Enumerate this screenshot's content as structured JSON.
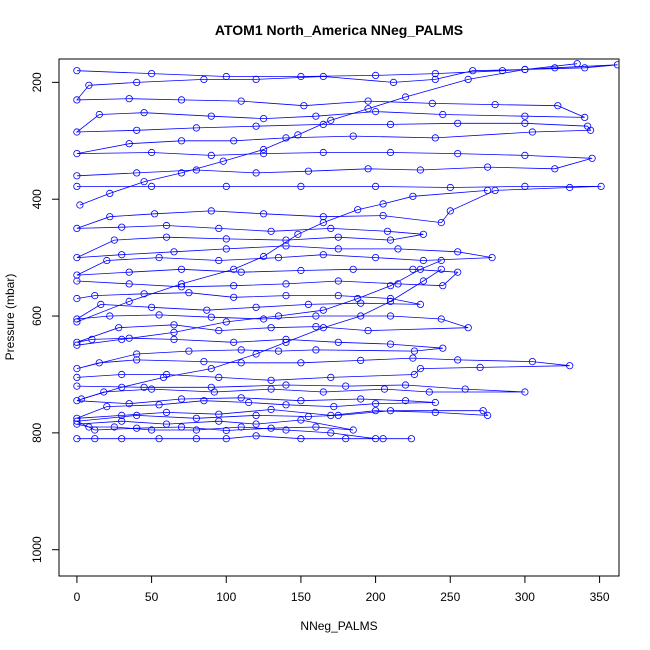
{
  "chart_data": {
    "type": "line",
    "title": "ATOM1 North_America NNeg_PALMS",
    "xlabel": "NNeg_PALMS",
    "ylabel": "Pressure (mbar)",
    "xlim": [
      -12,
      363
    ],
    "ylim": [
      1045,
      160
    ],
    "y_reversed": true,
    "xticks": [
      0,
      50,
      100,
      150,
      200,
      250,
      300,
      350
    ],
    "yticks": [
      200,
      400,
      600,
      800,
      1000
    ],
    "grid": false,
    "series_color": "#0000ff",
    "marker": "open-circle",
    "series": [
      {
        "values": [
          [
            0,
            810
          ],
          [
            12,
            810
          ],
          [
            30,
            810
          ],
          [
            55,
            810
          ],
          [
            80,
            810
          ],
          [
            100,
            810
          ],
          [
            120,
            805
          ],
          [
            150,
            810
          ],
          [
            180,
            810
          ],
          [
            205,
            810
          ],
          [
            224,
            810
          ],
          [
            200,
            810
          ],
          [
            170,
            800
          ],
          [
            140,
            795
          ],
          [
            110,
            790
          ],
          [
            80,
            795
          ],
          [
            50,
            795
          ],
          [
            25,
            790
          ],
          [
            8,
            790
          ],
          [
            0,
            785
          ],
          [
            30,
            780
          ],
          [
            60,
            785
          ],
          [
            95,
            780
          ],
          [
            120,
            785
          ],
          [
            150,
            778
          ],
          [
            185,
            795
          ],
          [
            160,
            790
          ],
          [
            130,
            792
          ],
          [
            100,
            796
          ],
          [
            70,
            790
          ],
          [
            40,
            792
          ],
          [
            12,
            795
          ],
          [
            0,
            780
          ],
          [
            40,
            770
          ],
          [
            80,
            775
          ],
          [
            120,
            770
          ],
          [
            155,
            772
          ],
          [
            175,
            770
          ],
          [
            210,
            762
          ],
          [
            272,
            762
          ],
          [
            275,
            770
          ],
          [
            240,
            765
          ],
          [
            200,
            762
          ],
          [
            170,
            770
          ],
          [
            130,
            760
          ],
          [
            95,
            768
          ],
          [
            60,
            765
          ],
          [
            30,
            770
          ],
          [
            0,
            775
          ],
          [
            20,
            755
          ],
          [
            55,
            752
          ],
          [
            85,
            745
          ],
          [
            115,
            748
          ],
          [
            140,
            752
          ],
          [
            172,
            755
          ],
          [
            200,
            750
          ],
          [
            240,
            748
          ],
          [
            220,
            745
          ],
          [
            190,
            742
          ],
          [
            150,
            745
          ],
          [
            110,
            740
          ],
          [
            70,
            742
          ],
          [
            35,
            750
          ],
          [
            0,
            745
          ],
          [
            18,
            730
          ],
          [
            50,
            725
          ],
          [
            92,
            730
          ],
          [
            130,
            725
          ],
          [
            165,
            730
          ],
          [
            206,
            725
          ],
          [
            236,
            730
          ],
          [
            300,
            730
          ],
          [
            260,
            725
          ],
          [
            220,
            718
          ],
          [
            180,
            720
          ],
          [
            140,
            718
          ],
          [
            90,
            722
          ],
          [
            45,
            722
          ],
          [
            0,
            720
          ]
        ]
      },
      {
        "values": [
          [
            0,
            705
          ],
          [
            30,
            700
          ],
          [
            60,
            700
          ],
          [
            95,
            705
          ],
          [
            130,
            710
          ],
          [
            170,
            705
          ],
          [
            226,
            700
          ],
          [
            230,
            690
          ],
          [
            270,
            688
          ],
          [
            330,
            685
          ],
          [
            305,
            678
          ],
          [
            255,
            675
          ],
          [
            225,
            672
          ],
          [
            190,
            676
          ],
          [
            150,
            680
          ],
          [
            110,
            680
          ],
          [
            85,
            678
          ],
          [
            40,
            675
          ],
          [
            15,
            680
          ],
          [
            0,
            690
          ],
          [
            40,
            665
          ],
          [
            75,
            660
          ],
          [
            110,
            658
          ],
          [
            135,
            660
          ],
          [
            160,
            658
          ],
          [
            226,
            660
          ],
          [
            245,
            655
          ],
          [
            210,
            648
          ],
          [
            175,
            645
          ],
          [
            140,
            640
          ],
          [
            105,
            645
          ],
          [
            65,
            640
          ],
          [
            35,
            638
          ],
          [
            10,
            640
          ],
          [
            0,
            645
          ],
          [
            28,
            620
          ],
          [
            65,
            615
          ],
          [
            95,
            625
          ],
          [
            130,
            620
          ],
          [
            160,
            618
          ],
          [
            195,
            625
          ],
          [
            262,
            620
          ],
          [
            244,
            605
          ],
          [
            210,
            600
          ],
          [
            160,
            600
          ],
          [
            125,
            605
          ],
          [
            90,
            602
          ],
          [
            55,
            598
          ],
          [
            22,
            600
          ],
          [
            0,
            605
          ],
          [
            16,
            580
          ],
          [
            50,
            585
          ],
          [
            87,
            590
          ],
          [
            120,
            585
          ],
          [
            155,
            580
          ],
          [
            190,
            578
          ],
          [
            230,
            580
          ],
          [
            210,
            570
          ],
          [
            175,
            565
          ],
          [
            140,
            565
          ],
          [
            105,
            568
          ],
          [
            75,
            560
          ],
          [
            45,
            562
          ],
          [
            12,
            565
          ],
          [
            0,
            570
          ]
        ]
      },
      {
        "values": [
          [
            0,
            540
          ],
          [
            35,
            545
          ],
          [
            70,
            550
          ],
          [
            105,
            548
          ],
          [
            140,
            545
          ],
          [
            175,
            540
          ],
          [
            215,
            545
          ],
          [
            245,
            548
          ],
          [
            255,
            525
          ],
          [
            225,
            520
          ],
          [
            185,
            520
          ],
          [
            150,
            522
          ],
          [
            110,
            525
          ],
          [
            70,
            520
          ],
          [
            35,
            525
          ],
          [
            0,
            530
          ],
          [
            20,
            505
          ],
          [
            55,
            500
          ],
          [
            95,
            505
          ],
          [
            135,
            500
          ],
          [
            165,
            495
          ],
          [
            200,
            500
          ],
          [
            232,
            505
          ],
          [
            278,
            500
          ],
          [
            255,
            490
          ],
          [
            215,
            485
          ],
          [
            175,
            485
          ],
          [
            140,
            480
          ],
          [
            100,
            485
          ],
          [
            65,
            490
          ],
          [
            30,
            495
          ],
          [
            0,
            500
          ],
          [
            25,
            470
          ],
          [
            60,
            465
          ],
          [
            100,
            468
          ],
          [
            140,
            470
          ],
          [
            175,
            465
          ],
          [
            210,
            470
          ],
          [
            232,
            460
          ],
          [
            208,
            455
          ],
          [
            170,
            450
          ],
          [
            130,
            455
          ],
          [
            95,
            450
          ],
          [
            60,
            445
          ],
          [
            30,
            448
          ],
          [
            0,
            450
          ],
          [
            22,
            430
          ],
          [
            52,
            425
          ],
          [
            90,
            420
          ],
          [
            125,
            425
          ],
          [
            165,
            430
          ],
          [
            205,
            428
          ],
          [
            244,
            440
          ],
          [
            250,
            420
          ],
          [
            280,
            385
          ],
          [
            330,
            380
          ],
          [
            351,
            378
          ],
          [
            300,
            378
          ],
          [
            250,
            380
          ],
          [
            200,
            378
          ],
          [
            150,
            378
          ],
          [
            100,
            378
          ],
          [
            50,
            378
          ],
          [
            0,
            378
          ]
        ]
      },
      {
        "values": [
          [
            0,
            360
          ],
          [
            40,
            355
          ],
          [
            80,
            350
          ],
          [
            120,
            355
          ],
          [
            155,
            352
          ],
          [
            195,
            348
          ],
          [
            230,
            350
          ],
          [
            275,
            345
          ],
          [
            320,
            348
          ],
          [
            345,
            330
          ],
          [
            300,
            325
          ],
          [
            255,
            322
          ],
          [
            210,
            320
          ],
          [
            165,
            320
          ],
          [
            125,
            322
          ],
          [
            90,
            325
          ],
          [
            50,
            320
          ],
          [
            0,
            322
          ],
          [
            35,
            305
          ],
          [
            70,
            300
          ],
          [
            105,
            300
          ],
          [
            140,
            295
          ],
          [
            185,
            292
          ],
          [
            240,
            295
          ],
          [
            305,
            285
          ],
          [
            344,
            282
          ],
          [
            342,
            275
          ],
          [
            300,
            270
          ],
          [
            255,
            270
          ],
          [
            210,
            272
          ],
          [
            165,
            272
          ],
          [
            120,
            275
          ],
          [
            80,
            278
          ],
          [
            40,
            282
          ],
          [
            0,
            285
          ],
          [
            15,
            255
          ],
          [
            45,
            252
          ],
          [
            90,
            258
          ],
          [
            125,
            262
          ],
          [
            160,
            258
          ],
          [
            200,
            250
          ],
          [
            245,
            255
          ],
          [
            300,
            258
          ],
          [
            340,
            260
          ],
          [
            322,
            240
          ],
          [
            280,
            238
          ],
          [
            238,
            236
          ],
          [
            195,
            232
          ],
          [
            152,
            240
          ],
          [
            110,
            232
          ],
          [
            70,
            230
          ],
          [
            35,
            228
          ],
          [
            0,
            230
          ],
          [
            8,
            205
          ],
          [
            40,
            200
          ],
          [
            85,
            195
          ],
          [
            120,
            195
          ],
          [
            165,
            190
          ],
          [
            212,
            200
          ],
          [
            240,
            195
          ],
          [
            265,
            180
          ],
          [
            300,
            178
          ],
          [
            340,
            175
          ],
          [
            362,
            170
          ],
          [
            320,
            175
          ],
          [
            285,
            180
          ],
          [
            240,
            185
          ],
          [
            200,
            188
          ],
          [
            150,
            190
          ],
          [
            100,
            190
          ],
          [
            50,
            185
          ],
          [
            0,
            180
          ]
        ]
      },
      {
        "values": [
          [
            2,
            410
          ],
          [
            22,
            390
          ],
          [
            45,
            370
          ],
          [
            70,
            355
          ],
          [
            98,
            335
          ],
          [
            125,
            315
          ],
          [
            148,
            290
          ],
          [
            170,
            265
          ],
          [
            195,
            245
          ],
          [
            220,
            225
          ],
          [
            262,
            195
          ],
          [
            300,
            178
          ],
          [
            335,
            168
          ]
        ]
      },
      {
        "values": [
          [
            0,
            610
          ],
          [
            35,
            575
          ],
          [
            70,
            545
          ],
          [
            105,
            520
          ],
          [
            125,
            498
          ],
          [
            148,
            460
          ],
          [
            165,
            440
          ],
          [
            188,
            418
          ],
          [
            205,
            408
          ],
          [
            225,
            395
          ],
          [
            275,
            385
          ]
        ]
      },
      {
        "values": [
          [
            0,
            650
          ],
          [
            30,
            640
          ],
          [
            65,
            628
          ],
          [
            100,
            610
          ],
          [
            135,
            600
          ],
          [
            165,
            590
          ],
          [
            188,
            570
          ],
          [
            210,
            548
          ],
          [
            230,
            520
          ],
          [
            244,
            505
          ]
        ]
      },
      {
        "values": [
          [
            3,
            742
          ],
          [
            30,
            722
          ],
          [
            58,
            705
          ],
          [
            90,
            690
          ],
          [
            120,
            665
          ],
          [
            140,
            645
          ],
          [
            165,
            620
          ],
          [
            190,
            600
          ],
          [
            210,
            575
          ],
          [
            232,
            540
          ],
          [
            244,
            520
          ]
        ]
      }
    ]
  }
}
